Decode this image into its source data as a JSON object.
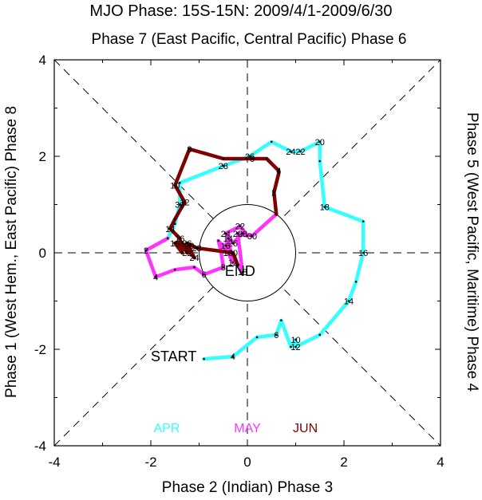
{
  "chart_data": {
    "type": "line",
    "title": "MJO Phase: 15S-15N: 2009/4/1-2009/6/30",
    "top_label": "Phase 7 (East Pacific, Central Pacific) Phase 6",
    "bottom_label": "Phase 2 (Indian) Phase 3",
    "left_label": "Phase 1 (West Hem., East Pacific) Phase 8",
    "right_label": "Phase 5 (West Pacific, Maritime) Phase 4",
    "xlim": [
      -4,
      4
    ],
    "ylim": [
      -4,
      4
    ],
    "x_ticks": [
      "-4",
      "-2",
      "0",
      "2",
      "4"
    ],
    "y_ticks": [
      "-4",
      "-2",
      "0",
      "2",
      "4"
    ],
    "unit_circle_radius": 1,
    "start_label": "START",
    "end_label": "END",
    "legend": [
      {
        "name": "APR",
        "color": "#33ffff"
      },
      {
        "name": "MAY",
        "color": "#ff33ff"
      },
      {
        "name": "JUN",
        "color": "#7f0000"
      }
    ],
    "series": [
      {
        "name": "APR",
        "color": "#33ffff",
        "points": [
          [
            -0.9,
            -2.2,
            ""
          ],
          [
            -0.3,
            -2.15,
            "4"
          ],
          [
            0.2,
            -1.75,
            ""
          ],
          [
            0.6,
            -1.7,
            "6"
          ],
          [
            0.7,
            -1.4,
            ""
          ],
          [
            0.9,
            -1.95,
            ""
          ],
          [
            1.0,
            -1.8,
            "10"
          ],
          [
            1.0,
            -1.95,
            "12"
          ],
          [
            1.5,
            -1.7,
            ""
          ],
          [
            2.1,
            -1.0,
            "14"
          ],
          [
            2.25,
            -0.6,
            ""
          ],
          [
            2.4,
            0.0,
            "16"
          ],
          [
            2.4,
            0.65,
            ""
          ],
          [
            1.6,
            0.95,
            "18"
          ],
          [
            1.5,
            1.9,
            ""
          ],
          [
            1.5,
            2.3,
            "20"
          ],
          [
            1.1,
            2.1,
            "22"
          ],
          [
            0.9,
            2.1,
            "24"
          ],
          [
            0.5,
            2.3,
            ""
          ],
          [
            0.05,
            2.0,
            "26"
          ],
          [
            -0.5,
            1.8,
            "28"
          ],
          [
            -1.4,
            1.45,
            ""
          ],
          [
            -1.4,
            1.0,
            "30"
          ],
          [
            -1.5,
            0.6,
            ""
          ],
          [
            -1.65,
            0.3,
            ""
          ]
        ]
      },
      {
        "name": "MAY",
        "color": "#ff33ff",
        "points": [
          [
            -1.65,
            0.3,
            ""
          ],
          [
            -2.1,
            0.05,
            "2"
          ],
          [
            -1.9,
            -0.5,
            "4"
          ],
          [
            -1.5,
            -0.35,
            ""
          ],
          [
            -1.1,
            -0.3,
            ""
          ],
          [
            -0.9,
            -0.45,
            "6"
          ],
          [
            -0.5,
            -0.3,
            "8"
          ],
          [
            -0.55,
            0.05,
            ""
          ],
          [
            -0.6,
            0.25,
            ""
          ],
          [
            -0.4,
            0.0,
            "10"
          ],
          [
            -0.3,
            -0.2,
            "12"
          ],
          [
            -0.4,
            0.3,
            "14"
          ],
          [
            -0.45,
            0.15,
            "16"
          ],
          [
            -0.1,
            -0.4,
            "18"
          ],
          [
            -0.2,
            0.4,
            "20"
          ],
          [
            0.0,
            0.35,
            ""
          ],
          [
            -0.15,
            0.55,
            "22"
          ],
          [
            -0.45,
            0.4,
            "24"
          ],
          [
            -0.3,
            0.2,
            "26"
          ],
          [
            -0.1,
            0.4,
            "28"
          ],
          [
            0.1,
            0.35,
            "30"
          ],
          [
            0.6,
            0.8,
            ""
          ]
        ]
      },
      {
        "name": "JUN",
        "color": "#7f0000",
        "points": [
          [
            0.6,
            0.8,
            ""
          ],
          [
            0.55,
            1.25,
            "2"
          ],
          [
            0.65,
            1.65,
            ""
          ],
          [
            0.65,
            1.7,
            "4"
          ],
          [
            0.4,
            1.95,
            ""
          ],
          [
            0.1,
            1.95,
            "6"
          ],
          [
            -0.5,
            1.95,
            ""
          ],
          [
            -1.2,
            2.15,
            "8"
          ],
          [
            -1.5,
            1.4,
            "10"
          ],
          [
            -1.3,
            1.05,
            "12"
          ],
          [
            -1.5,
            0.7,
            ""
          ],
          [
            -1.6,
            0.5,
            "14"
          ],
          [
            -1.4,
            0.3,
            "16"
          ],
          [
            -1.35,
            0.0,
            ""
          ],
          [
            -1.5,
            0.2,
            "18"
          ],
          [
            -1.2,
            0.15,
            "20"
          ],
          [
            -1.25,
            0.0,
            "22"
          ],
          [
            -1.35,
            0.2,
            ""
          ],
          [
            -1.1,
            -0.1,
            "24"
          ],
          [
            -1.25,
            0.2,
            "26"
          ],
          [
            -1.05,
            0.1,
            "28"
          ],
          [
            -0.3,
            0.0,
            "30"
          ],
          [
            -0.2,
            -0.25,
            ""
          ]
        ]
      }
    ]
  }
}
